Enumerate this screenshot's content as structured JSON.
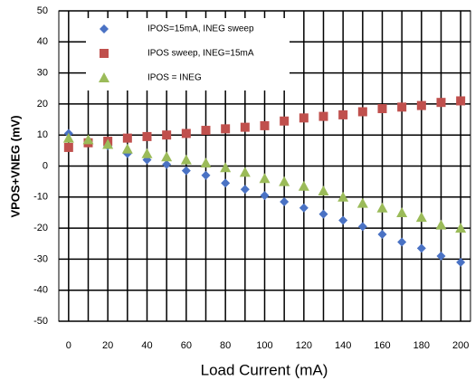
{
  "chart_data": {
    "type": "scatter",
    "x_label": "Load Current (mA)",
    "y_label": "VPOS+VNEG (mV)",
    "x": [
      0,
      10,
      20,
      30,
      40,
      50,
      60,
      70,
      80,
      90,
      100,
      110,
      120,
      130,
      140,
      150,
      160,
      170,
      180,
      190,
      200
    ],
    "series": [
      {
        "name": "IPOS=15mA, INEG sweep",
        "color": "#4a72c4",
        "marker": "diamond",
        "values": [
          10.5,
          8,
          6.5,
          4,
          2,
          0.5,
          -1.5,
          -3,
          -5.5,
          -7.5,
          -9.5,
          -11.5,
          -13.5,
          -15.5,
          -17.5,
          -19.5,
          -22,
          -24.5,
          -26.5,
          -29,
          -31
        ]
      },
      {
        "name": "IPOS sweep, INEG=15mA",
        "color": "#c0504d",
        "marker": "square",
        "values": [
          6,
          7.5,
          8,
          9,
          9.5,
          10,
          10.5,
          11.5,
          12,
          12.5,
          13,
          14.5,
          15.5,
          16,
          16.5,
          17.5,
          18.5,
          19,
          19.5,
          20.5,
          21
        ]
      },
      {
        "name": "IPOS = INEG",
        "color": "#9bbb59",
        "marker": "triangle",
        "values": [
          9,
          8.5,
          7,
          5.5,
          4,
          3,
          2,
          1,
          -0.5,
          -2,
          -4,
          -5,
          -6.5,
          -8,
          -10,
          -12,
          -13.5,
          -15,
          -16.5,
          -19,
          -20
        ]
      }
    ],
    "xlim": [
      -5,
      205
    ],
    "xticks": [
      0,
      20,
      40,
      60,
      80,
      100,
      120,
      140,
      160,
      180,
      200
    ],
    "x_minor_ticks": [
      10,
      30,
      50,
      70,
      90,
      110,
      130,
      150,
      170,
      190
    ],
    "ylim": [
      -50,
      50
    ],
    "yticks": [
      -50,
      -40,
      -30,
      -20,
      -10,
      0,
      10,
      20,
      30,
      40,
      50
    ],
    "grid": true,
    "legend": "upper left"
  }
}
